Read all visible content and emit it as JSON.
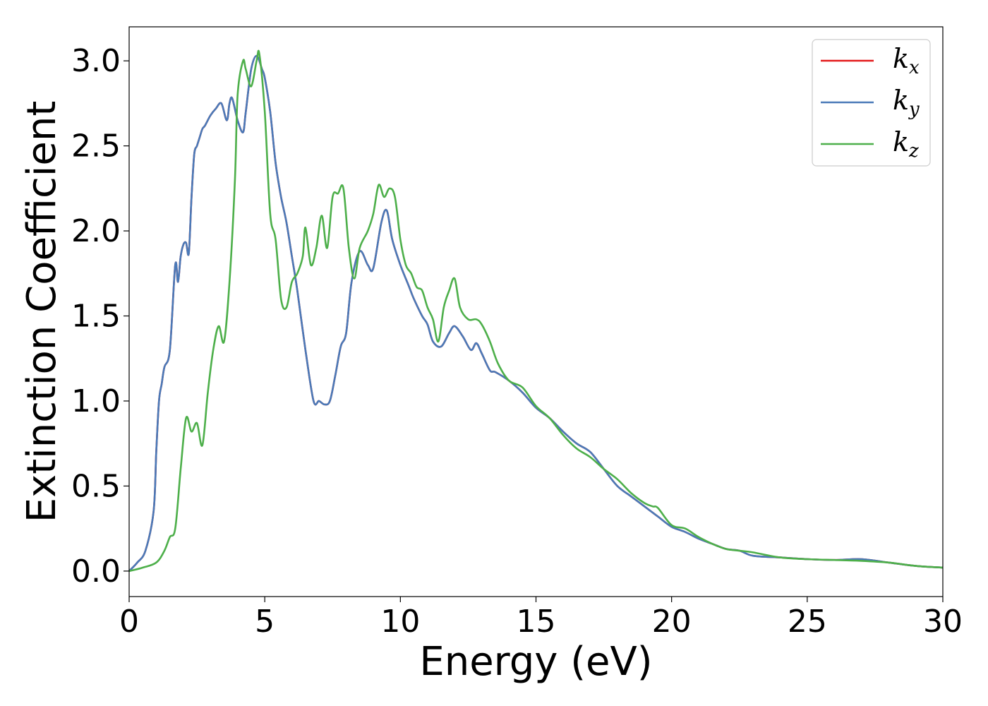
{
  "chart_data": {
    "type": "line",
    "title": "",
    "xlabel": "Energy (eV)",
    "ylabel": "Extinction Coefficient",
    "xlim": [
      0,
      30
    ],
    "ylim": [
      -0.15,
      3.2
    ],
    "xticks": [
      0,
      5,
      10,
      15,
      20,
      25,
      30
    ],
    "xtick_labels": [
      "0",
      "5",
      "10",
      "15",
      "20",
      "25",
      "30"
    ],
    "yticks": [
      0.0,
      0.5,
      1.0,
      1.5,
      2.0,
      2.5,
      3.0
    ],
    "ytick_labels": [
      "0.0",
      "0.5",
      "1.0",
      "1.5",
      "2.0",
      "2.5",
      "3.0"
    ],
    "grid": false,
    "legend_position": "top-right",
    "series": [
      {
        "name": "k_x",
        "legend_base": "k",
        "legend_sub": "x",
        "color": "#e41a1c",
        "x": [
          0,
          0.3,
          0.6,
          0.9,
          1.0,
          1.1,
          1.2,
          1.3,
          1.5,
          1.7,
          1.8,
          1.9,
          2.0,
          2.1,
          2.2,
          2.3,
          2.4,
          2.5,
          2.6,
          2.7,
          2.8,
          3.0,
          3.2,
          3.4,
          3.6,
          3.7,
          3.8,
          4.0,
          4.2,
          4.3,
          4.5,
          4.7,
          4.9,
          5.0,
          5.2,
          5.4,
          5.6,
          5.8,
          6.0,
          6.2,
          6.5,
          6.8,
          7.0,
          7.2,
          7.4,
          7.6,
          7.8,
          8.0,
          8.2,
          8.5,
          8.8,
          9.0,
          9.3,
          9.5,
          9.7,
          10.0,
          10.3,
          10.5,
          10.8,
          11.0,
          11.2,
          11.5,
          11.8,
          12.0,
          12.3,
          12.6,
          12.8,
          13.0,
          13.3,
          13.5,
          14.0,
          14.5,
          15.0,
          15.5,
          16.0,
          16.5,
          17.0,
          17.5,
          18.0,
          18.5,
          19.0,
          19.5,
          20.0,
          20.5,
          21.0,
          21.5,
          22.0,
          22.5,
          23.0,
          24.0,
          25.0,
          26.0,
          27.0,
          28.0,
          29.0,
          30.0
        ],
        "y": [
          0.0,
          0.05,
          0.12,
          0.35,
          0.7,
          1.0,
          1.1,
          1.2,
          1.3,
          1.8,
          1.7,
          1.85,
          1.92,
          1.93,
          1.87,
          2.2,
          2.45,
          2.5,
          2.55,
          2.6,
          2.62,
          2.68,
          2.72,
          2.75,
          2.65,
          2.75,
          2.78,
          2.65,
          2.58,
          2.7,
          2.95,
          3.03,
          2.95,
          2.9,
          2.7,
          2.4,
          2.2,
          2.05,
          1.85,
          1.65,
          1.3,
          1.0,
          1.0,
          0.98,
          1.0,
          1.15,
          1.32,
          1.4,
          1.7,
          1.88,
          1.8,
          1.78,
          2.05,
          2.12,
          1.95,
          1.8,
          1.68,
          1.6,
          1.5,
          1.45,
          1.35,
          1.32,
          1.4,
          1.44,
          1.38,
          1.3,
          1.34,
          1.28,
          1.18,
          1.17,
          1.12,
          1.05,
          0.96,
          0.9,
          0.82,
          0.75,
          0.7,
          0.6,
          0.5,
          0.44,
          0.38,
          0.32,
          0.26,
          0.23,
          0.19,
          0.16,
          0.13,
          0.12,
          0.09,
          0.08,
          0.07,
          0.065,
          0.07,
          0.05,
          0.03,
          0.02
        ]
      },
      {
        "name": "k_y",
        "legend_base": "k",
        "legend_sub": "y",
        "color": "#4a7ab8",
        "x": [
          0,
          0.3,
          0.6,
          0.9,
          1.0,
          1.1,
          1.2,
          1.3,
          1.5,
          1.7,
          1.8,
          1.9,
          2.0,
          2.1,
          2.2,
          2.3,
          2.4,
          2.5,
          2.6,
          2.7,
          2.8,
          3.0,
          3.2,
          3.4,
          3.6,
          3.7,
          3.8,
          4.0,
          4.2,
          4.3,
          4.5,
          4.7,
          4.9,
          5.0,
          5.2,
          5.4,
          5.6,
          5.8,
          6.0,
          6.2,
          6.5,
          6.8,
          7.0,
          7.2,
          7.4,
          7.6,
          7.8,
          8.0,
          8.2,
          8.5,
          8.8,
          9.0,
          9.3,
          9.5,
          9.7,
          10.0,
          10.3,
          10.5,
          10.8,
          11.0,
          11.2,
          11.5,
          11.8,
          12.0,
          12.3,
          12.6,
          12.8,
          13.0,
          13.3,
          13.5,
          14.0,
          14.5,
          15.0,
          15.5,
          16.0,
          16.5,
          17.0,
          17.5,
          18.0,
          18.5,
          19.0,
          19.5,
          20.0,
          20.5,
          21.0,
          21.5,
          22.0,
          22.5,
          23.0,
          24.0,
          25.0,
          26.0,
          27.0,
          28.0,
          29.0,
          30.0
        ],
        "y": [
          0.0,
          0.05,
          0.12,
          0.35,
          0.7,
          1.0,
          1.1,
          1.2,
          1.3,
          1.8,
          1.7,
          1.85,
          1.92,
          1.93,
          1.87,
          2.2,
          2.45,
          2.5,
          2.55,
          2.6,
          2.62,
          2.68,
          2.72,
          2.75,
          2.65,
          2.75,
          2.78,
          2.65,
          2.58,
          2.7,
          2.95,
          3.03,
          2.95,
          2.9,
          2.7,
          2.4,
          2.2,
          2.05,
          1.85,
          1.65,
          1.3,
          1.0,
          1.0,
          0.98,
          1.0,
          1.15,
          1.32,
          1.4,
          1.7,
          1.88,
          1.8,
          1.78,
          2.05,
          2.12,
          1.95,
          1.8,
          1.68,
          1.6,
          1.5,
          1.45,
          1.35,
          1.32,
          1.4,
          1.44,
          1.38,
          1.3,
          1.34,
          1.28,
          1.18,
          1.17,
          1.12,
          1.05,
          0.96,
          0.9,
          0.82,
          0.75,
          0.7,
          0.6,
          0.5,
          0.44,
          0.38,
          0.32,
          0.26,
          0.23,
          0.19,
          0.16,
          0.13,
          0.12,
          0.09,
          0.08,
          0.07,
          0.065,
          0.07,
          0.05,
          0.03,
          0.02
        ]
      },
      {
        "name": "k_z",
        "legend_base": "k",
        "legend_sub": "z",
        "color": "#4daf4a",
        "x": [
          0,
          0.5,
          1.0,
          1.3,
          1.5,
          1.7,
          1.9,
          2.1,
          2.3,
          2.5,
          2.7,
          2.9,
          3.1,
          3.3,
          3.5,
          3.7,
          3.9,
          4.0,
          4.2,
          4.3,
          4.5,
          4.7,
          4.8,
          5.0,
          5.2,
          5.4,
          5.6,
          5.8,
          6.0,
          6.2,
          6.4,
          6.5,
          6.7,
          6.9,
          7.1,
          7.3,
          7.5,
          7.7,
          7.9,
          8.1,
          8.3,
          8.5,
          8.8,
          9.0,
          9.2,
          9.4,
          9.6,
          9.8,
          10.0,
          10.2,
          10.4,
          10.6,
          10.8,
          11.0,
          11.2,
          11.4,
          11.6,
          11.8,
          12.0,
          12.2,
          12.5,
          12.8,
          13.0,
          13.3,
          13.6,
          14.0,
          14.5,
          15.0,
          15.5,
          16.0,
          16.5,
          17.0,
          17.5,
          18.0,
          18.5,
          19.0,
          19.3,
          19.5,
          20.0,
          20.5,
          21.0,
          21.5,
          22.0,
          22.5,
          23.0,
          24.0,
          25.0,
          26.0,
          27.0,
          28.0,
          29.0,
          30.0
        ],
        "y": [
          0.0,
          0.02,
          0.05,
          0.12,
          0.2,
          0.25,
          0.6,
          0.9,
          0.82,
          0.87,
          0.74,
          1.05,
          1.3,
          1.44,
          1.35,
          1.7,
          2.3,
          2.8,
          3.0,
          2.95,
          2.85,
          3.0,
          3.04,
          2.7,
          2.1,
          1.95,
          1.6,
          1.55,
          1.7,
          1.75,
          1.85,
          2.02,
          1.8,
          1.9,
          2.09,
          1.9,
          2.2,
          2.22,
          2.25,
          1.9,
          1.72,
          1.9,
          2.0,
          2.1,
          2.27,
          2.2,
          2.25,
          2.2,
          1.95,
          1.8,
          1.75,
          1.67,
          1.65,
          1.55,
          1.48,
          1.35,
          1.55,
          1.65,
          1.72,
          1.55,
          1.48,
          1.48,
          1.45,
          1.35,
          1.22,
          1.12,
          1.08,
          0.97,
          0.9,
          0.8,
          0.72,
          0.67,
          0.6,
          0.54,
          0.46,
          0.4,
          0.38,
          0.37,
          0.27,
          0.25,
          0.2,
          0.16,
          0.13,
          0.12,
          0.11,
          0.08,
          0.07,
          0.065,
          0.06,
          0.05,
          0.03,
          0.02
        ]
      }
    ]
  }
}
